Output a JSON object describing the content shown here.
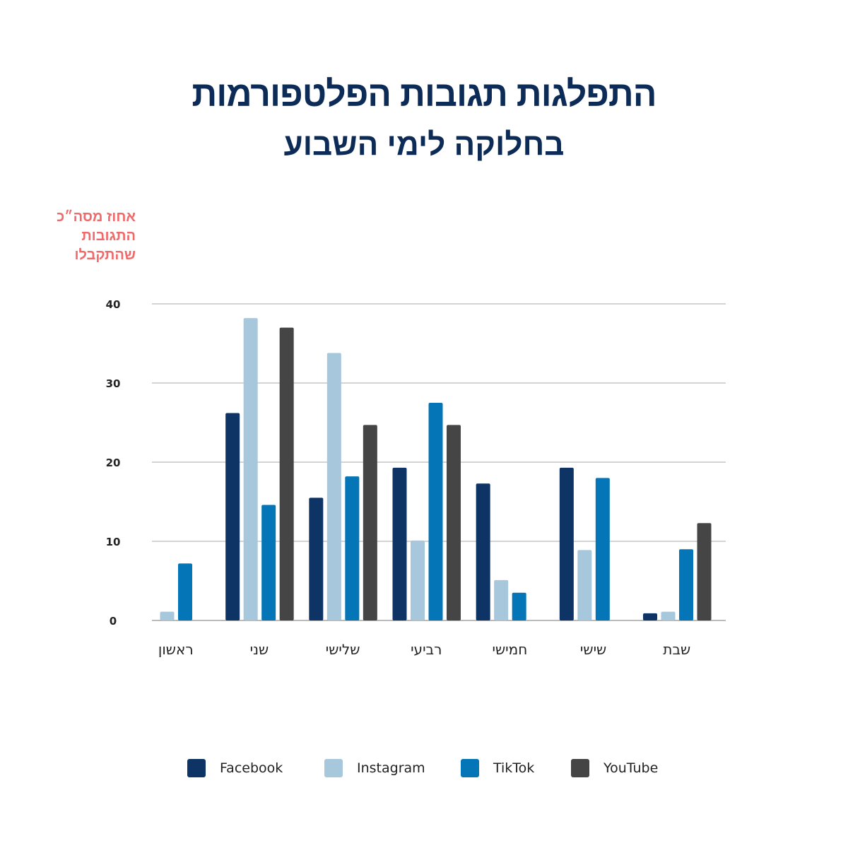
{
  "chart_data": {
    "type": "bar",
    "title": "התפלגות תגובות הפלטפורמות",
    "subtitle": "בחלוקה לימי השבוע",
    "ylabel": "אחוז מסה״כ\nהתגובות\nשהתקבלו",
    "ylim": [
      0,
      40
    ],
    "yticks": [
      0,
      10,
      20,
      30,
      40
    ],
    "grid": true,
    "legend_position": "bottom",
    "categories": [
      "ראשון",
      "שני",
      "שלישי",
      "רביעי",
      "חמישי",
      "שישי",
      "שבת"
    ],
    "series": [
      {
        "name": "Facebook",
        "color": "#0d3465",
        "values": [
          0,
          26.2,
          15.5,
          19.3,
          17.3,
          19.3,
          0.9
        ]
      },
      {
        "name": "Instagram",
        "color": "#a7c7dc",
        "values": [
          1.1,
          38.2,
          33.8,
          10.1,
          5.1,
          8.9,
          1.1
        ]
      },
      {
        "name": "TikTok",
        "color": "#0476b7",
        "values": [
          7.2,
          14.6,
          18.2,
          27.5,
          3.5,
          18.0,
          9.0
        ]
      },
      {
        "name": "YouTube",
        "color": "#454545",
        "values": [
          0,
          37.0,
          24.7,
          24.7,
          0,
          0,
          12.3
        ]
      }
    ]
  }
}
